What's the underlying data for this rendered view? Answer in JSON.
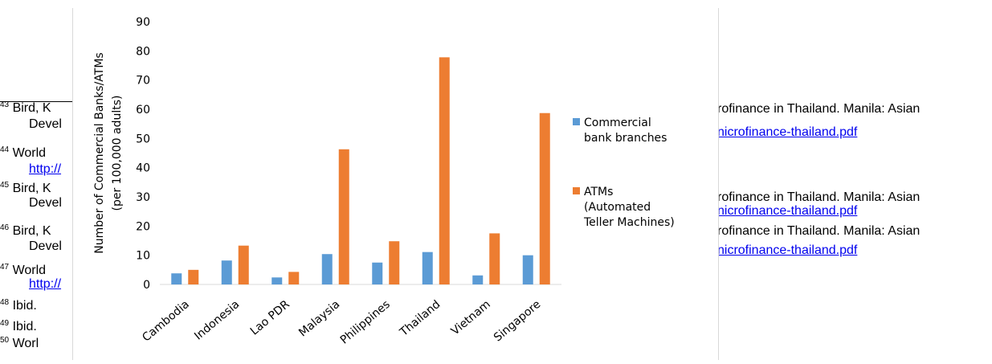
{
  "document": {
    "footnotes_left": [
      {
        "num": "43",
        "lines": [
          "Bird, K",
          "Devel"
        ]
      },
      {
        "num": "44",
        "lines": [
          "World",
          "http://"
        ]
      },
      {
        "num": "45",
        "lines": [
          "Bird, K",
          "Devel"
        ]
      },
      {
        "num": "46",
        "lines": [
          "Bird, K",
          "Devel"
        ]
      },
      {
        "num": "47",
        "lines": [
          "World",
          "http://"
        ]
      },
      {
        "num": "48",
        "lines": [
          "Ibid."
        ]
      },
      {
        "num": "49",
        "lines": [
          "Ibid."
        ]
      },
      {
        "num": "50",
        "lines": [
          "Worl"
        ]
      }
    ],
    "right_fragments": {
      "r1": "rofinance in Thailand. Manila: Asian",
      "r2": "nicrofinance-thailand.pdf",
      "r3": "rofinance in Thailand. Manila: Asian",
      "r4": "nicrofinance-thailand.pdf",
      "r5": "rofinance in Thailand. Manila: Asian",
      "r6": "nicrofinance-thailand.pdf"
    }
  },
  "colors": {
    "branches": "#5b9bd5",
    "atms": "#ed7d31",
    "grid": "#d9d9d9",
    "axis_text": "#000000"
  },
  "chart_data": {
    "type": "bar",
    "categories": [
      "Cambodia",
      "Indonesia",
      "Lao PDR",
      "Malaysia",
      "Philippines",
      "Thailand",
      "Vietnam",
      "Singapore"
    ],
    "series": [
      {
        "name": "Commercial bank branches",
        "legend_lines": [
          "Commercial",
          "bank branches"
        ],
        "color": "#5b9bd5",
        "values": [
          3.8,
          8.2,
          2.4,
          10.4,
          7.5,
          11.1,
          3.1,
          10.0
        ]
      },
      {
        "name": "ATMs (Automated Teller Machines)",
        "legend_lines": [
          "ATMs",
          "(Automated",
          "Teller Machines)"
        ],
        "color": "#ed7d31",
        "values": [
          5.0,
          13.3,
          4.3,
          46.3,
          14.8,
          77.8,
          17.5,
          58.7
        ]
      }
    ],
    "ylabel_lines": [
      "Number of Commercial Banks/ATMs",
      "(per 100,000 adults)"
    ],
    "xlabel": "",
    "ylim": [
      0,
      90
    ],
    "yticks": [
      0,
      10,
      20,
      30,
      40,
      50,
      60,
      70,
      80,
      90
    ],
    "grid": false,
    "legend_position": "right"
  }
}
